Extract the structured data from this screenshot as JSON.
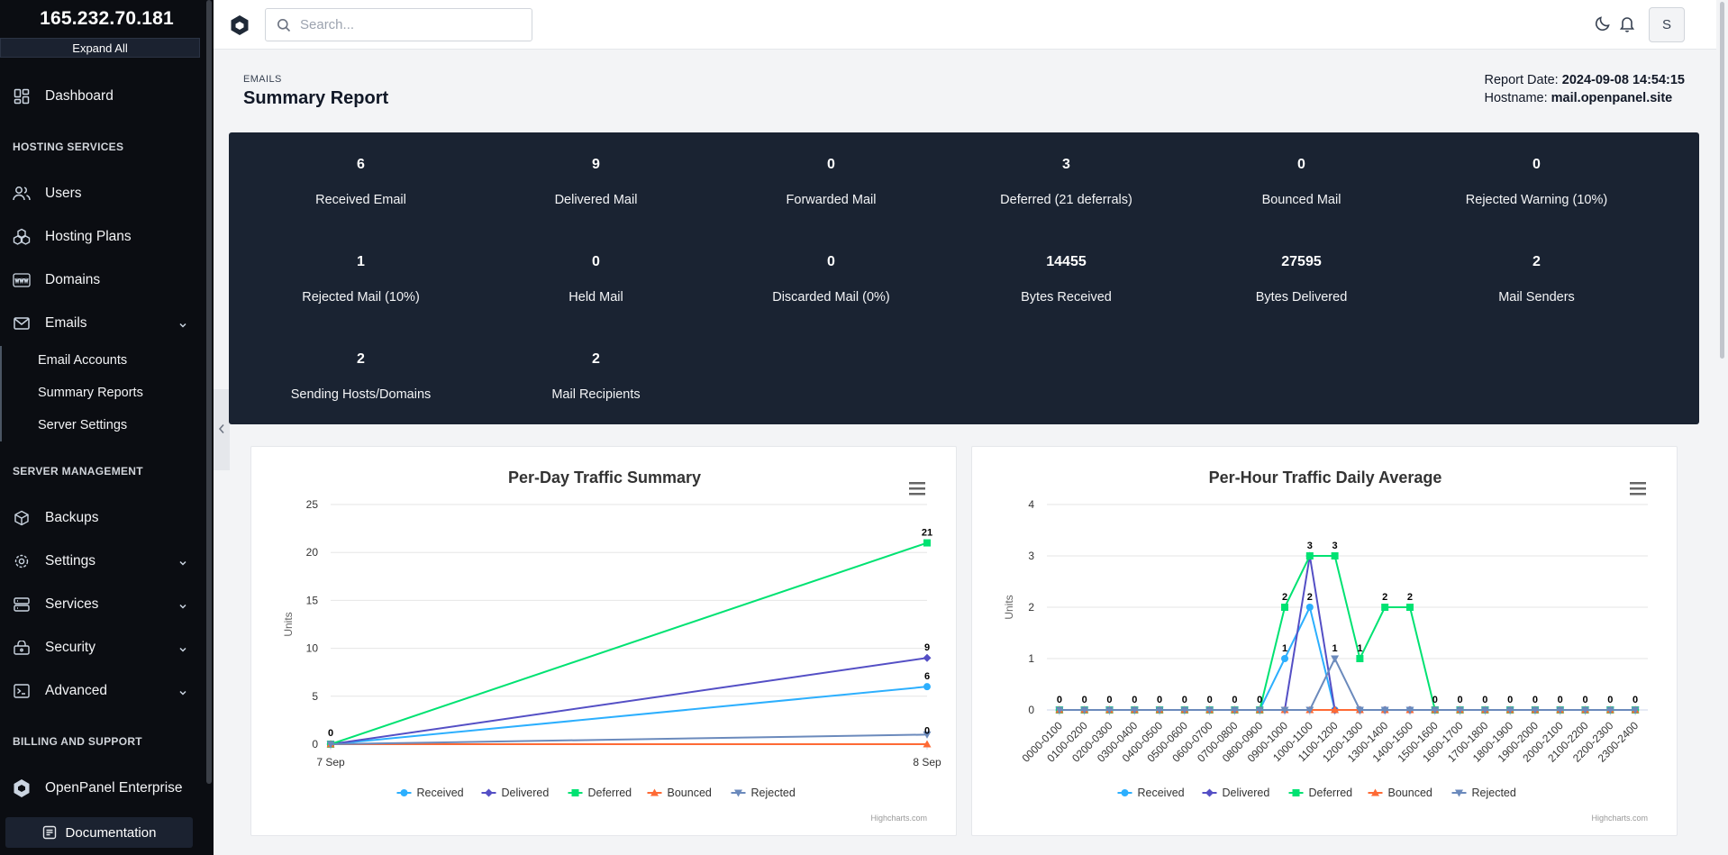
{
  "sidebar": {
    "server_ip": "165.232.70.181",
    "expand_all": "Expand All",
    "dashboard": "Dashboard",
    "section_hosting": "HOSTING SERVICES",
    "users": "Users",
    "hosting_plans": "Hosting Plans",
    "domains": "Domains",
    "emails": "Emails",
    "email_accounts": "Email Accounts",
    "summary_reports": "Summary Reports",
    "server_settings": "Server Settings",
    "section_server": "SERVER MANAGEMENT",
    "backups": "Backups",
    "settings": "Settings",
    "services": "Services",
    "security": "Security",
    "advanced": "Advanced",
    "section_billing": "BILLING AND SUPPORT",
    "enterprise": "OpenPanel Enterprise",
    "documentation": "Documentation"
  },
  "topbar": {
    "search_placeholder": "Search...",
    "avatar_initial": "S"
  },
  "header": {
    "breadcrumb": "EMAILS",
    "title": "Summary Report",
    "report_date_label": "Report Date:",
    "report_date": "2024-09-08 14:54:15",
    "hostname_label": "Hostname:",
    "hostname": "mail.openpanel.site"
  },
  "stats": [
    {
      "value": "6",
      "label": "Received Email"
    },
    {
      "value": "9",
      "label": "Delivered Mail"
    },
    {
      "value": "0",
      "label": "Forwarded Mail"
    },
    {
      "value": "3",
      "label": "Deferred (21 deferrals)"
    },
    {
      "value": "0",
      "label": "Bounced Mail"
    },
    {
      "value": "0",
      "label": "Rejected Warning (10%)"
    },
    {
      "value": "1",
      "label": "Rejected Mail (10%)"
    },
    {
      "value": "0",
      "label": "Held Mail"
    },
    {
      "value": "0",
      "label": "Discarded Mail (0%)"
    },
    {
      "value": "14455",
      "label": "Bytes Received"
    },
    {
      "value": "27595",
      "label": "Bytes Delivered"
    },
    {
      "value": "2",
      "label": "Mail Senders"
    },
    {
      "value": "2",
      "label": "Sending Hosts/Domains"
    },
    {
      "value": "2",
      "label": "Mail Recipients"
    }
  ],
  "colors": {
    "received": "#2caffe",
    "delivered": "#544fc5",
    "deferred": "#00e272",
    "bounced": "#fe6a35",
    "rejected": "#6b8abc"
  },
  "chart_data": [
    {
      "type": "line",
      "title": "Per-Day Traffic Summary",
      "ylabel": "Units",
      "categories": [
        "7 Sep",
        "8 Sep"
      ],
      "ylim": [
        0,
        25
      ],
      "yticks": [
        0,
        5,
        10,
        15,
        20,
        25
      ],
      "series": [
        {
          "name": "Received",
          "values": [
            0,
            6
          ]
        },
        {
          "name": "Delivered",
          "values": [
            0,
            9
          ]
        },
        {
          "name": "Deferred",
          "values": [
            0,
            21
          ]
        },
        {
          "name": "Bounced",
          "values": [
            0,
            0
          ]
        },
        {
          "name": "Rejected",
          "values": [
            0,
            1
          ]
        }
      ],
      "credit": "Highcharts.com"
    },
    {
      "type": "line",
      "title": "Per-Hour Traffic Daily Average",
      "ylabel": "Units",
      "categories": [
        "0000-0100",
        "0100-0200",
        "0200-0300",
        "0300-0400",
        "0400-0500",
        "0500-0600",
        "0600-0700",
        "0700-0800",
        "0800-0900",
        "0900-1000",
        "1000-1100",
        "1100-1200",
        "1200-1300",
        "1300-1400",
        "1400-1500",
        "1500-1600",
        "1600-1700",
        "1700-1800",
        "1800-1900",
        "1900-2000",
        "2000-2100",
        "2100-2200",
        "2200-2300",
        "2300-2400"
      ],
      "ylim": [
        0,
        4
      ],
      "yticks": [
        0,
        1,
        2,
        3,
        4
      ],
      "series": [
        {
          "name": "Received",
          "values": [
            0,
            0,
            0,
            0,
            0,
            0,
            0,
            0,
            0,
            1,
            2,
            0,
            0,
            0,
            0,
            0,
            0,
            0,
            0,
            0,
            0,
            0,
            0,
            0
          ]
        },
        {
          "name": "Delivered",
          "values": [
            0,
            0,
            0,
            0,
            0,
            0,
            0,
            0,
            0,
            0,
            3,
            0,
            0,
            0,
            0,
            0,
            0,
            0,
            0,
            0,
            0,
            0,
            0,
            0
          ]
        },
        {
          "name": "Deferred",
          "values": [
            0,
            0,
            0,
            0,
            0,
            0,
            0,
            0,
            0,
            2,
            3,
            3,
            1,
            2,
            2,
            0,
            0,
            0,
            0,
            0,
            0,
            0,
            0,
            0
          ]
        },
        {
          "name": "Bounced",
          "values": [
            0,
            0,
            0,
            0,
            0,
            0,
            0,
            0,
            0,
            0,
            0,
            0,
            0,
            0,
            0,
            0,
            0,
            0,
            0,
            0,
            0,
            0,
            0,
            0
          ]
        },
        {
          "name": "Rejected",
          "values": [
            0,
            0,
            0,
            0,
            0,
            0,
            0,
            0,
            0,
            0,
            0,
            1,
            0,
            0,
            0,
            0,
            0,
            0,
            0,
            0,
            0,
            0,
            0,
            0
          ]
        }
      ],
      "credit": "Highcharts.com"
    }
  ]
}
